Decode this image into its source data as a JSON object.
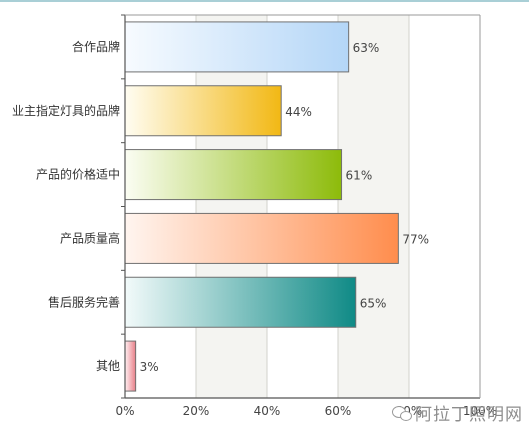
{
  "chart_data": {
    "type": "bar",
    "orientation": "horizontal",
    "categories": [
      "合作品牌",
      "业主指定灯具的品牌",
      "产品的价格适中",
      "产品质量高",
      "售后服务完善",
      "其他"
    ],
    "values": [
      63,
      44,
      61,
      77,
      65,
      3
    ],
    "value_labels": [
      "63%",
      "44%",
      "61%",
      "77%",
      "65%",
      "3%"
    ],
    "xticks": [
      "0%",
      "20%",
      "40%",
      "60%",
      "80%",
      "100%"
    ],
    "xlim": [
      0,
      100
    ],
    "grid": true,
    "legend": "none",
    "colors": [
      [
        "#f7fbff",
        "#b4d6f7"
      ],
      [
        "#fffdf2",
        "#f2b814"
      ],
      [
        "#fbfdf3",
        "#8dbb0a"
      ],
      [
        "#fff5f0",
        "#ff8d4d"
      ],
      [
        "#f2fafa",
        "#0f8a86"
      ],
      [
        "#fff0f2",
        "#e88089"
      ]
    ]
  },
  "watermark": {
    "icon": "wechat-icon",
    "text": "阿拉丁照明网"
  }
}
